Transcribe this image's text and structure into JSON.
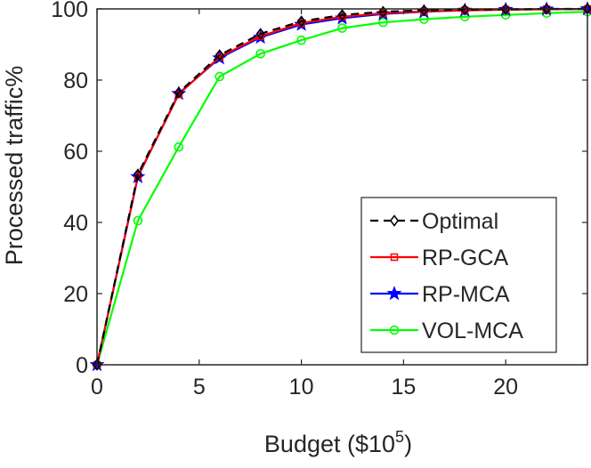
{
  "chart_data": {
    "type": "line",
    "title": "",
    "xlabel": "Budget ($10",
    "xlabel_superscript": "5",
    "xlabel_suffix": ")",
    "ylabel": "Processed traffic%",
    "xlim": [
      0,
      24
    ],
    "ylim": [
      0,
      100
    ],
    "xticks": [
      0,
      5,
      10,
      15,
      20
    ],
    "yticks": [
      0,
      20,
      40,
      60,
      80,
      100
    ],
    "grid": false,
    "legend_position": "bottom-right",
    "x": [
      0,
      2,
      4,
      6,
      8,
      10,
      12,
      14,
      16,
      18,
      20,
      22,
      24
    ],
    "series": [
      {
        "name": "Optimal",
        "color": "#000000",
        "line_style": "dashed",
        "marker": "diamond",
        "values": [
          0,
          53.5,
          76.5,
          87,
          93,
          96.5,
          98.3,
          99.2,
          99.6,
          99.8,
          99.9,
          100,
          100
        ]
      },
      {
        "name": "RP-GCA",
        "color": "#ff0000",
        "line_style": "solid",
        "marker": "square",
        "values": [
          0,
          53,
          76,
          86.5,
          92.3,
          96,
          97.8,
          98.8,
          99.3,
          99.6,
          99.8,
          99.9,
          100
        ]
      },
      {
        "name": "RP-MCA",
        "color": "#0000ff",
        "line_style": "solid",
        "marker": "star",
        "values": [
          0,
          52.8,
          76.2,
          86.2,
          92,
          95.6,
          97.4,
          98.6,
          99.2,
          99.6,
          99.8,
          99.9,
          100
        ]
      },
      {
        "name": "VOL-MCA",
        "color": "#00ff00",
        "line_style": "solid",
        "marker": "circle",
        "values": [
          0,
          40.5,
          61.2,
          81,
          87.4,
          91.2,
          94.6,
          96.2,
          97.1,
          97.8,
          98.3,
          98.8,
          99.2
        ]
      }
    ]
  }
}
